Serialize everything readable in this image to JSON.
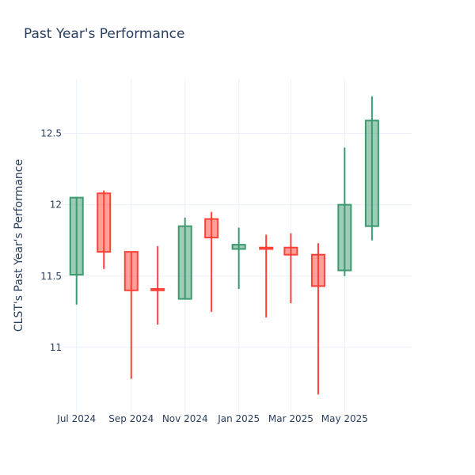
{
  "chart_data": {
    "type": "candlestick",
    "title": "Past Year's Performance",
    "xlabel": "",
    "ylabel": "CLST's Past Year's Performance",
    "y_ticks": [
      11,
      11.5,
      12,
      12.5
    ],
    "y_tick_labels": [
      "11",
      "11.5",
      "12",
      "12.5"
    ],
    "ylim": [
      10.55,
      12.88
    ],
    "x_ticks": [
      {
        "date": "2024-07-01",
        "label": "Jul 2024"
      },
      {
        "date": "2024-09-01",
        "label": "Sep 2024"
      },
      {
        "date": "2024-11-01",
        "label": "Nov 2024"
      },
      {
        "date": "2025-01-01",
        "label": "Jan 2025"
      },
      {
        "date": "2025-03-01",
        "label": "Mar 2025"
      },
      {
        "date": "2025-05-01",
        "label": "May 2025"
      }
    ],
    "xlim": [
      "2024-06-16",
      "2025-07-16"
    ],
    "increasing_color": "#3d9970",
    "decreasing_color": "#ff4136",
    "grid": true,
    "candles": [
      {
        "date": "2024-07-01",
        "open": 11.51,
        "high": 12.05,
        "low": 11.3,
        "close": 12.05
      },
      {
        "date": "2024-08-01",
        "open": 12.08,
        "high": 12.1,
        "low": 11.55,
        "close": 11.67
      },
      {
        "date": "2024-09-01",
        "open": 11.67,
        "high": 11.67,
        "low": 10.78,
        "close": 11.4
      },
      {
        "date": "2024-10-01",
        "open": 11.41,
        "high": 11.71,
        "low": 11.16,
        "close": 11.4
      },
      {
        "date": "2024-11-01",
        "open": 11.34,
        "high": 11.91,
        "low": 11.34,
        "close": 11.85
      },
      {
        "date": "2024-12-01",
        "open": 11.9,
        "high": 11.95,
        "low": 11.25,
        "close": 11.77
      },
      {
        "date": "2025-01-01",
        "open": 11.69,
        "high": 11.84,
        "low": 11.41,
        "close": 11.72
      },
      {
        "date": "2025-02-01",
        "open": 11.7,
        "high": 11.79,
        "low": 11.21,
        "close": 11.69
      },
      {
        "date": "2025-03-01",
        "open": 11.7,
        "high": 11.8,
        "low": 11.31,
        "close": 11.65
      },
      {
        "date": "2025-04-01",
        "open": 11.65,
        "high": 11.73,
        "low": 10.67,
        "close": 11.43
      },
      {
        "date": "2025-05-01",
        "open": 11.54,
        "high": 12.4,
        "low": 11.5,
        "close": 12.0
      },
      {
        "date": "2025-06-01",
        "open": 11.85,
        "high": 12.76,
        "low": 11.75,
        "close": 12.59
      }
    ]
  }
}
